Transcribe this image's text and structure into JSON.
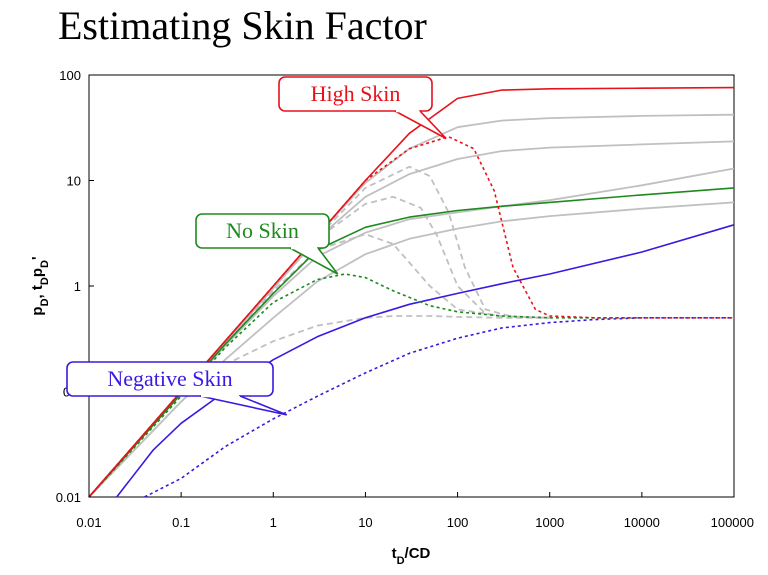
{
  "title": "Estimating Skin Factor",
  "colors": {
    "high": "#e8121a",
    "none": "#1e8a1e",
    "negative": "#3a1ae0",
    "other": "#c0c0c0"
  },
  "chart_data": {
    "type": "line",
    "title": "Estimating Skin Factor",
    "xlabel": "tD/CD",
    "ylabel": "pD, tDpD'",
    "xscale": "log",
    "yscale": "log",
    "xlim": [
      0.01,
      100000
    ],
    "ylim": [
      0.01,
      100
    ],
    "x_ticks": [
      "0.01",
      "0.1",
      "1",
      "10",
      "100",
      "1000",
      "10000",
      "100000"
    ],
    "y_ticks": [
      "0.01",
      "0.1",
      "1",
      "10",
      "100"
    ],
    "grid": false,
    "annotations": [
      {
        "text": "High Skin",
        "color": "high",
        "points_to": [
          75,
          25
        ]
      },
      {
        "text": "No Skin",
        "color": "none",
        "points_to": [
          5,
          1.3
        ]
      },
      {
        "text": "Negative Skin",
        "color": "negative",
        "points_to": [
          1.4,
          0.06
        ]
      }
    ],
    "series": [
      {
        "color": "other",
        "dash": false,
        "x": [
          0.01,
          0.1,
          0.3,
          1,
          3,
          10,
          30,
          100,
          300,
          1000,
          10000,
          100000
        ],
        "y": [
          0.01,
          0.095,
          0.27,
          0.8,
          1.9,
          3.2,
          4.3,
          5.0,
          5.7,
          6.5,
          9.0,
          13
        ]
      },
      {
        "color": "other",
        "dash": false,
        "x": [
          0.01,
          0.1,
          0.3,
          1,
          3,
          10,
          30,
          100,
          300,
          1000,
          10000,
          100000
        ],
        "y": [
          0.01,
          0.1,
          0.29,
          0.95,
          2.8,
          7,
          11.5,
          16,
          19,
          20.5,
          22,
          23.5
        ]
      },
      {
        "color": "other",
        "dash": false,
        "x": [
          0.01,
          0.1,
          0.3,
          1,
          3,
          10,
          30,
          100,
          300,
          1000,
          10000,
          100000
        ],
        "y": [
          0.01,
          0.1,
          0.3,
          0.99,
          3,
          9.5,
          20,
          32,
          37,
          39,
          41,
          42
        ]
      },
      {
        "color": "other",
        "dash": false,
        "x": [
          0.01,
          0.1,
          0.3,
          1,
          3,
          10,
          30,
          100,
          300,
          1000,
          10000,
          100000
        ],
        "y": [
          0.01,
          0.08,
          0.2,
          0.5,
          1.1,
          2.0,
          2.8,
          3.5,
          4.1,
          4.6,
          5.4,
          6.2
        ]
      },
      {
        "color": "other",
        "dash": true,
        "x": [
          0.01,
          0.1,
          0.3,
          1,
          3,
          10,
          20,
          50,
          100,
          300,
          1000
        ],
        "y": [
          0.01,
          0.08,
          0.18,
          0.3,
          0.42,
          0.5,
          0.52,
          0.52,
          0.51,
          0.5,
          0.5
        ]
      },
      {
        "color": "other",
        "dash": true,
        "x": [
          0.01,
          0.1,
          0.3,
          1,
          3,
          10,
          20,
          50,
          100,
          300,
          1000
        ],
        "y": [
          0.01,
          0.1,
          0.28,
          0.9,
          2.2,
          3.1,
          2.5,
          1.0,
          0.6,
          0.52,
          0.5
        ]
      },
      {
        "color": "other",
        "dash": true,
        "x": [
          0.01,
          0.1,
          0.3,
          1,
          3,
          10,
          20,
          40,
          60,
          100,
          200,
          300,
          1000
        ],
        "y": [
          0.01,
          0.1,
          0.29,
          0.95,
          2.8,
          6.0,
          7.0,
          5.5,
          3.0,
          1.0,
          0.55,
          0.51,
          0.5
        ]
      },
      {
        "color": "other",
        "dash": true,
        "x": [
          0.01,
          0.1,
          0.3,
          1,
          3,
          10,
          30,
          50,
          80,
          120,
          200,
          400,
          1000
        ],
        "y": [
          0.01,
          0.1,
          0.3,
          0.98,
          2.9,
          8.5,
          13.5,
          11,
          5,
          1.5,
          0.6,
          0.51,
          0.5
        ]
      },
      {
        "color": "high",
        "dash": false,
        "x": [
          0.01,
          0.1,
          0.3,
          1,
          3,
          10,
          30,
          100,
          300,
          1000,
          10000,
          100000
        ],
        "y": [
          0.01,
          0.1,
          0.3,
          1,
          3,
          10,
          28,
          60,
          72,
          74,
          75,
          76
        ]
      },
      {
        "color": "high",
        "dash": true,
        "x": [
          0.01,
          0.1,
          0.3,
          1,
          3,
          10,
          30,
          80,
          150,
          250,
          400,
          700,
          1000,
          3000,
          100000
        ],
        "y": [
          0.01,
          0.1,
          0.3,
          1,
          3,
          10,
          20,
          26,
          20,
          8,
          1.5,
          0.6,
          0.52,
          0.5,
          0.5
        ]
      },
      {
        "color": "none",
        "dash": false,
        "x": [
          0.01,
          0.1,
          0.3,
          1,
          3,
          10,
          30,
          100,
          300,
          1000,
          10000,
          100000
        ],
        "y": [
          0.01,
          0.095,
          0.28,
          0.85,
          2.2,
          3.6,
          4.5,
          5.2,
          5.7,
          6.2,
          7.3,
          8.5
        ]
      },
      {
        "color": "none",
        "dash": true,
        "x": [
          0.01,
          0.1,
          0.3,
          1,
          3,
          6,
          10,
          20,
          50,
          100,
          300,
          1000,
          10000
        ],
        "y": [
          0.01,
          0.09,
          0.26,
          0.7,
          1.15,
          1.3,
          1.2,
          0.9,
          0.65,
          0.57,
          0.52,
          0.5,
          0.5
        ]
      },
      {
        "color": "negative",
        "dash": false,
        "x": [
          0.02,
          0.05,
          0.1,
          0.3,
          1,
          3,
          10,
          30,
          100,
          300,
          1000,
          10000,
          100000
        ],
        "y": [
          0.01,
          0.028,
          0.05,
          0.1,
          0.2,
          0.33,
          0.5,
          0.67,
          0.85,
          1.05,
          1.3,
          2.1,
          3.8
        ]
      },
      {
        "color": "negative",
        "dash": true,
        "x": [
          0.04,
          0.1,
          0.3,
          1,
          3,
          10,
          30,
          100,
          300,
          1000,
          3000,
          10000,
          100000
        ],
        "y": [
          0.01,
          0.015,
          0.03,
          0.055,
          0.09,
          0.15,
          0.23,
          0.32,
          0.4,
          0.45,
          0.48,
          0.5,
          0.5
        ]
      }
    ]
  }
}
